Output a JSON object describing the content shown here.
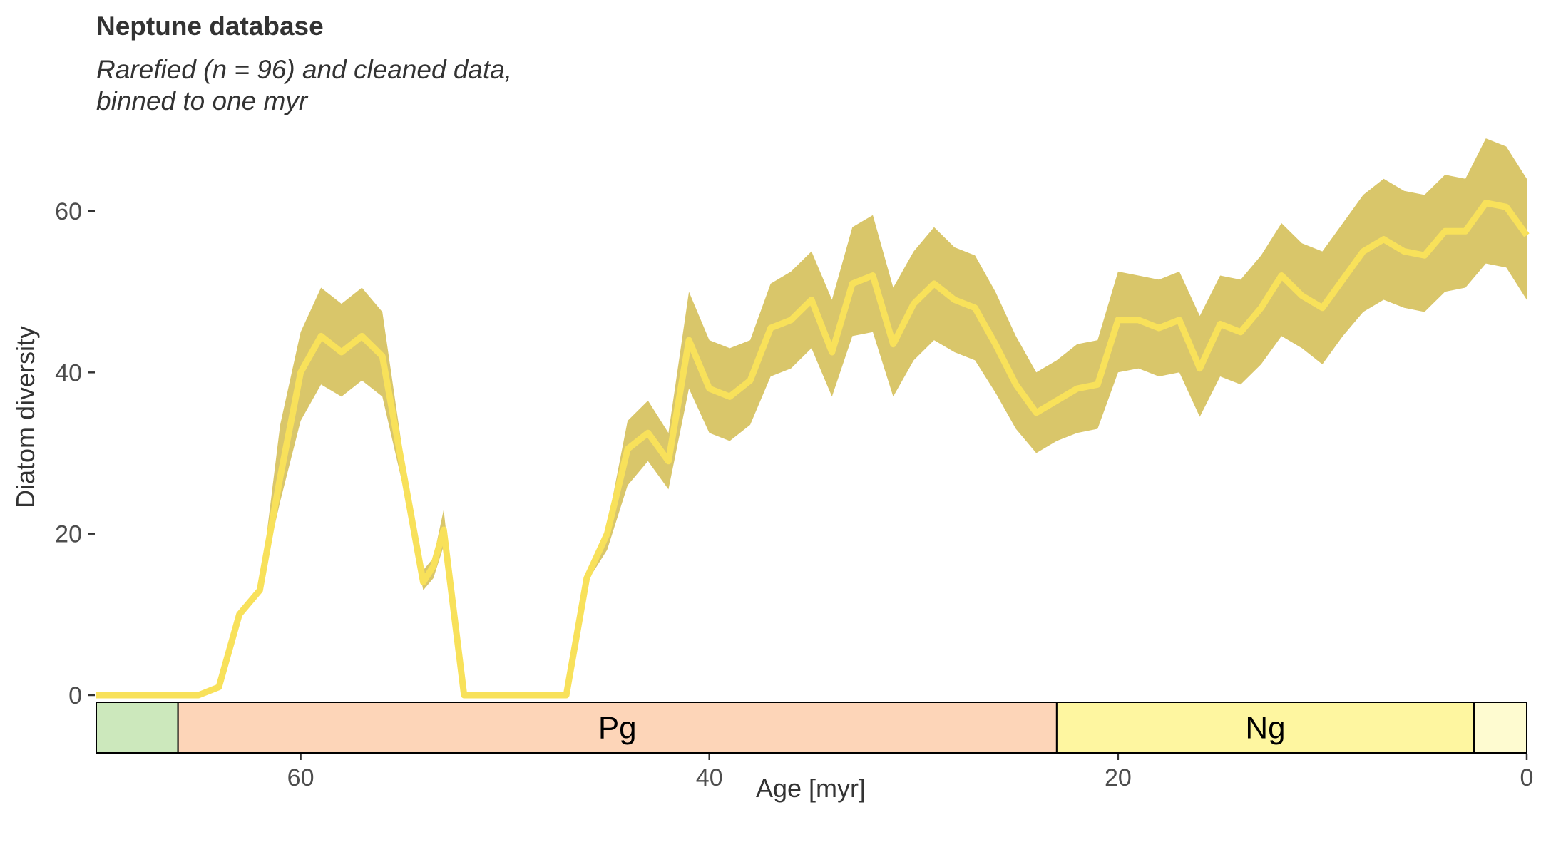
{
  "title": "Neptune database",
  "subtitle": "Rarefied (n = 96) and cleaned data,\nbinned to one myr",
  "colors": {
    "line": "#F8E15A",
    "ribbon": "#D9C66A",
    "axis_text": "#4d4d4d"
  },
  "chart_data": {
    "type": "area",
    "title": "Neptune database",
    "subtitle": "Rarefied (n = 96) and cleaned data, binned to one myr",
    "xlabel": "Age [myr]",
    "ylabel": "Diatom diversity",
    "xlim": [
      70,
      0
    ],
    "x_reversed": true,
    "ylim": [
      0,
      66
    ],
    "xticks": [
      60,
      40,
      20,
      0
    ],
    "yticks": [
      0,
      20,
      40,
      60
    ],
    "grid": false,
    "x": [
      70,
      69,
      68,
      67,
      66,
      65,
      64,
      63,
      62,
      61,
      60,
      59,
      58,
      57,
      56,
      55,
      54,
      53.5,
      53,
      52,
      51,
      50,
      49,
      48,
      47,
      46,
      45,
      44,
      43,
      42,
      41,
      40,
      39,
      38,
      37,
      36,
      35,
      34,
      33,
      32,
      31,
      30,
      29,
      28,
      27,
      26,
      25,
      24,
      23,
      22,
      21,
      20,
      19,
      18,
      17,
      16,
      15,
      14,
      13,
      12,
      11,
      10,
      9,
      8,
      7,
      6,
      5,
      4,
      3,
      2,
      1,
      0
    ],
    "series": [
      {
        "values": [
          0,
          0,
          0,
          0,
          0,
          0,
          1,
          10,
          13,
          27,
          40,
          44.5,
          42.5,
          44.5,
          42,
          28,
          14,
          16,
          20.5,
          0,
          0,
          0,
          0,
          0,
          0,
          14.5,
          20,
          30.5,
          32.5,
          29,
          44,
          38,
          37,
          39,
          45.5,
          46.5,
          49,
          42.5,
          51,
          52,
          43.5,
          48.5,
          51,
          49,
          48,
          43.5,
          38.5,
          35,
          36.5,
          38,
          38.5,
          46.5,
          46.5,
          45.5,
          46.5,
          40.5,
          46,
          45,
          48,
          52,
          49.5,
          48,
          51.5,
          55,
          56.5,
          55,
          54.5,
          57.5,
          57.5,
          61,
          60.5,
          57
        ]
      }
    ],
    "ribbon_upper": [
      0,
      0,
      0,
      0,
      0,
      0,
      1,
      10,
      13,
      33.5,
      45,
      50.5,
      48.5,
      50.5,
      47.5,
      30,
      15.5,
      17,
      23,
      0,
      0,
      0,
      0,
      0,
      0,
      15,
      21,
      34,
      36.5,
      32.5,
      50,
      44,
      43,
      44,
      51,
      52.5,
      55,
      49,
      58,
      59.5,
      50.5,
      55,
      58,
      55.5,
      54.5,
      50,
      44.5,
      40,
      41.5,
      43.5,
      44,
      52.5,
      52,
      51.5,
      52.5,
      47,
      52,
      51.5,
      54.5,
      58.5,
      56,
      55,
      58.5,
      62,
      64,
      62.5,
      62,
      64.5,
      64,
      69,
      68,
      64
    ],
    "ribbon_lower": [
      0,
      0,
      0,
      0,
      0,
      0,
      1,
      10,
      13,
      24,
      34,
      38.5,
      37,
      39,
      37,
      26,
      13,
      14.5,
      18.5,
      0,
      0,
      0,
      0,
      0,
      0,
      14,
      18,
      26,
      29,
      25.5,
      38,
      32.5,
      31.5,
      33.5,
      39.5,
      40.5,
      43,
      37,
      44.5,
      45,
      37,
      41.5,
      44,
      42.5,
      41.5,
      37.5,
      33,
      30,
      31.5,
      32.5,
      33,
      40,
      40.5,
      39.5,
      40,
      34.5,
      39.5,
      38.5,
      41,
      44.5,
      43,
      41,
      44.5,
      47.5,
      49,
      48,
      47.5,
      50,
      50.5,
      53.5,
      53,
      49
    ],
    "timescale": [
      {
        "label": "",
        "from": 70,
        "to": 66,
        "color": "#CCE8BC"
      },
      {
        "label": "Pg",
        "from": 66,
        "to": 23,
        "color": "#FDD5B8"
      },
      {
        "label": "Ng",
        "from": 23,
        "to": 2.58,
        "color": "#FEF6A0"
      },
      {
        "label": "",
        "from": 2.58,
        "to": 0,
        "color": "#FEFBD0"
      }
    ]
  }
}
